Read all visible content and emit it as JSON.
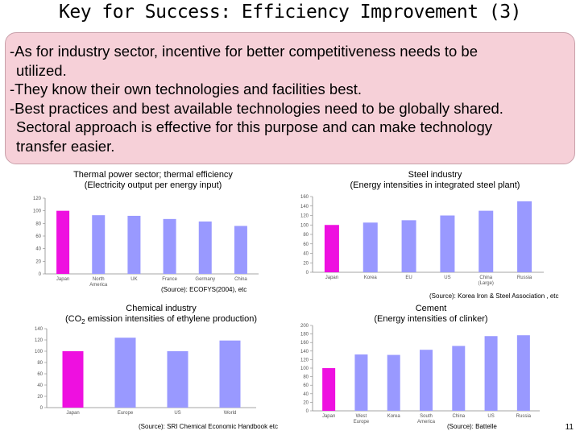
{
  "title": "Key for Success: Efficiency Improvement (3)",
  "bullets": [
    "-As for industry sector, incentive for better competitiveness needs to be",
    "utilized.",
    "-They know their own technologies and facilities best.",
    "-Best practices and best available technologies need to be globally shared.",
    "Sectoral approach is effective for this purpose and can make technology",
    "transfer easier."
  ],
  "colors": {
    "highlight": "#ee10e0",
    "bar": "#9999ff",
    "callout_bg": "#f6d0d8"
  },
  "page_number": "11",
  "chart_data": [
    {
      "type": "bar",
      "title": "Thermal power sector; thermal efficiency",
      "subtitle": "(Electricity output per energy input)",
      "categories": [
        "Japan",
        "North America",
        "UK",
        "France",
        "Germany",
        "China"
      ],
      "values": [
        100,
        93,
        92,
        87,
        83,
        76
      ],
      "ylim": [
        0,
        120
      ],
      "yticks": [
        0,
        20,
        40,
        60,
        80,
        100,
        120
      ],
      "source": "(Source): ECOFYS(2004), etc"
    },
    {
      "type": "bar",
      "title": "Steel industry",
      "subtitle": "(Energy intensities in integrated steel plant)",
      "categories": [
        "Japan",
        "Korea",
        "EU",
        "US",
        "China (Large)",
        "Russia"
      ],
      "values": [
        100,
        105,
        110,
        120,
        130,
        150
      ],
      "ylim": [
        0,
        160
      ],
      "yticks": [
        0,
        20,
        40,
        60,
        80,
        100,
        120,
        140,
        160
      ],
      "source": "(Source): Korea Iron & Steel Association , etc"
    },
    {
      "type": "bar",
      "title": "Chemical industry",
      "subtitle": "(CO2 emission intensities of ethylene production)",
      "categories": [
        "Japan",
        "Europe",
        "US",
        "World"
      ],
      "values": [
        100,
        124,
        100,
        119
      ],
      "ylim": [
        0,
        140
      ],
      "yticks": [
        0,
        20,
        40,
        60,
        80,
        100,
        120,
        140
      ],
      "source": "(Source): SRI Chemical Economic Handbook etc"
    },
    {
      "type": "bar",
      "title": "Cement",
      "subtitle": "(Energy intensities of clinker)",
      "categories": [
        "Japan",
        "West Europe",
        "Korea",
        "South America",
        "China",
        "US",
        "Russia"
      ],
      "values": [
        100,
        132,
        131,
        143,
        152,
        175,
        177
      ],
      "ylim": [
        0,
        200
      ],
      "yticks": [
        0,
        20,
        40,
        60,
        80,
        100,
        120,
        140,
        160,
        180,
        200
      ],
      "source": "(Source): Battelle"
    }
  ]
}
